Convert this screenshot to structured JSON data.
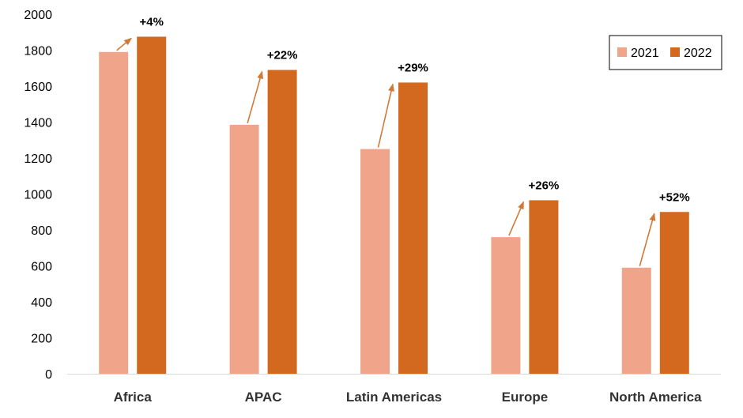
{
  "chart_data": {
    "type": "bar",
    "categories": [
      "Africa",
      "APAC",
      "Latin Americas",
      "Europe",
      "North America"
    ],
    "series": [
      {
        "name": "2021",
        "values": [
          1790,
          1385,
          1250,
          760,
          590
        ],
        "color": "#F0A58A"
      },
      {
        "name": "2022",
        "values": [
          1875,
          1690,
          1620,
          965,
          900
        ],
        "color": "#D2691E"
      }
    ],
    "annotations": [
      "+4%",
      "+22%",
      "+29%",
      "+26%",
      "+52%"
    ],
    "annotation_color": "#D07A3A",
    "ylim": [
      0,
      2000
    ],
    "yticks": [
      0,
      200,
      400,
      600,
      800,
      1000,
      1200,
      1400,
      1600,
      1800,
      2000
    ],
    "grid": false,
    "legend_position": "top-right"
  }
}
